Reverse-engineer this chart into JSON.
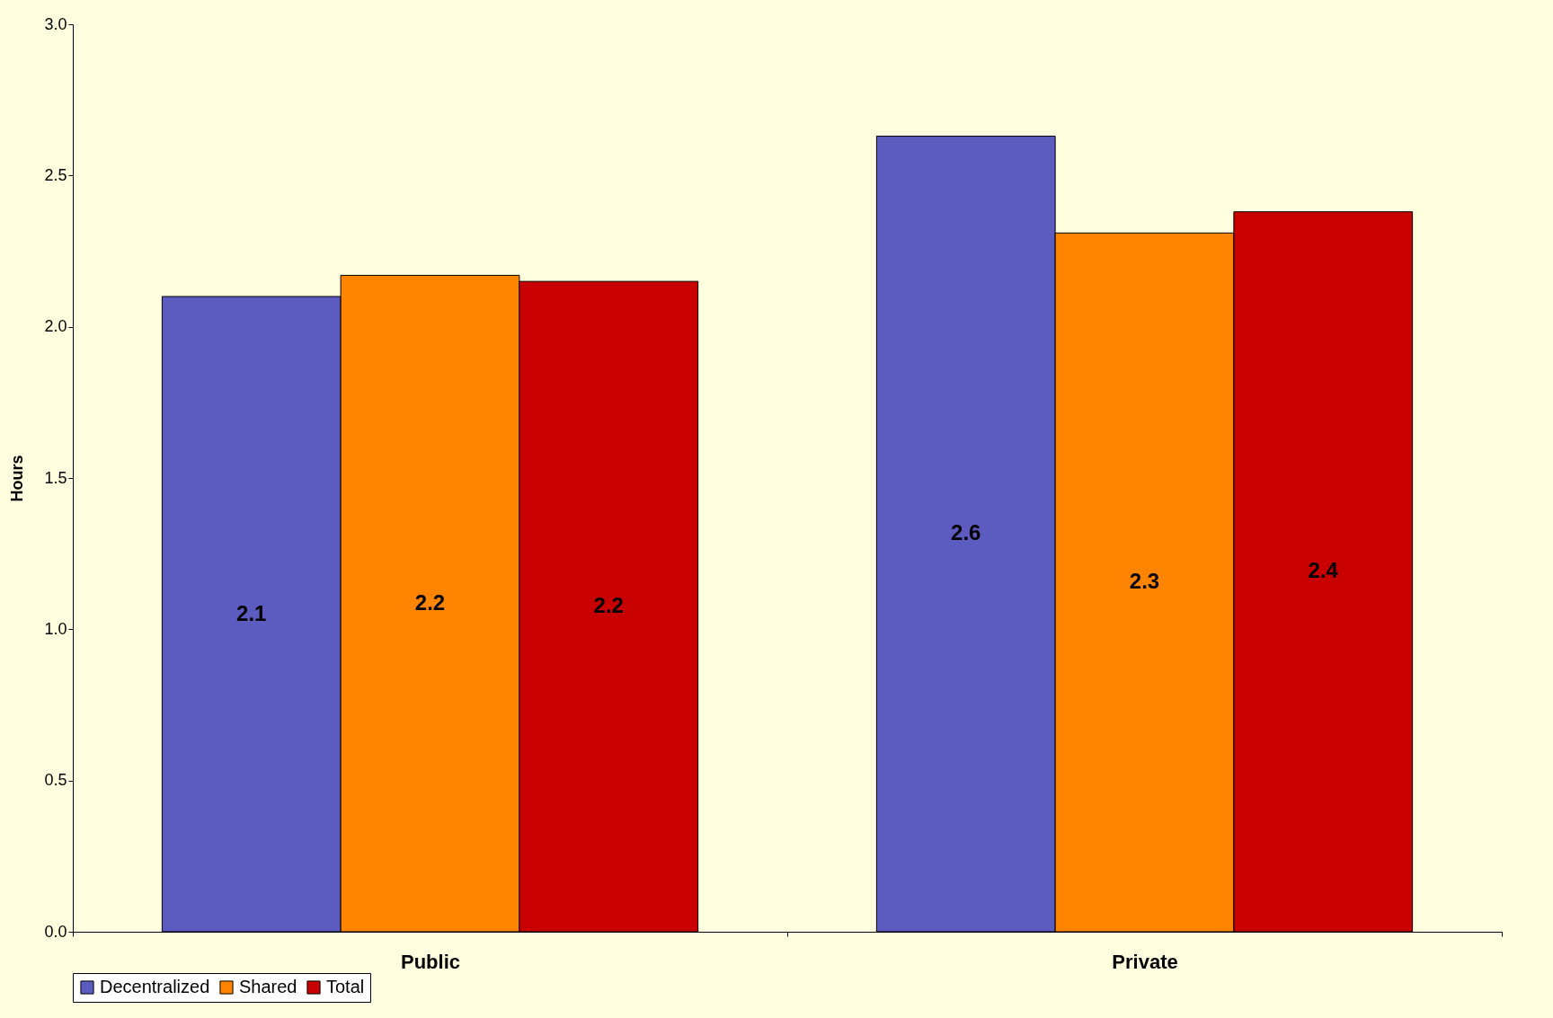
{
  "chart_data": {
    "type": "bar",
    "ylabel": "Hours",
    "categories": [
      "Public",
      "Private"
    ],
    "series": [
      {
        "name": "Decentralized",
        "color": "#5c5cc0",
        "values": [
          2.1,
          2.63
        ],
        "value_labels": [
          "2.1",
          "2.6"
        ]
      },
      {
        "name": "Shared",
        "color": "#ff8400",
        "values": [
          2.17,
          2.31
        ],
        "value_labels": [
          "2.2",
          "2.3"
        ]
      },
      {
        "name": "Total",
        "color": "#c80000",
        "values": [
          2.15,
          2.38
        ],
        "value_labels": [
          "2.2",
          "2.4"
        ]
      }
    ],
    "ylim": [
      0,
      3
    ],
    "yticks": [
      {
        "value": 0,
        "label": "0.0"
      },
      {
        "value": 0.5,
        "label": "0.5"
      },
      {
        "value": 1,
        "label": "1.0"
      },
      {
        "value": 1.5,
        "label": "1.5"
      },
      {
        "value": 2,
        "label": "2.0"
      },
      {
        "value": 2.5,
        "label": "2.5"
      },
      {
        "value": 3,
        "label": "3.0"
      }
    ],
    "grid": false,
    "legend": "bottom"
  }
}
